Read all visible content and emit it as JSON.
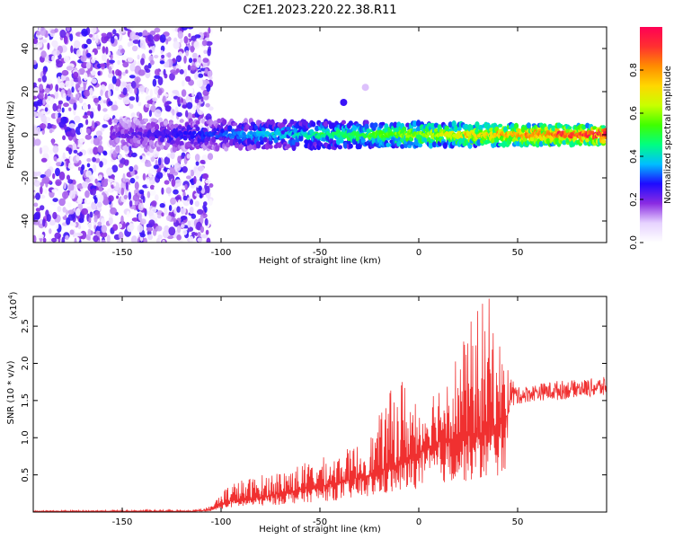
{
  "title": "C2E1.2023.220.22.38.R11",
  "chart_data": [
    {
      "type": "heatmap",
      "xlabel": "Height of straight line (km)",
      "ylabel": "Frequency (Hz)",
      "xlim": [
        -195,
        95
      ],
      "ylim": [
        -50,
        50
      ],
      "xticks": [
        "-150",
        "-100",
        "-50",
        "0",
        "50"
      ],
      "yticks": [
        "-40",
        "-20",
        "0",
        "20",
        "40"
      ],
      "colorbar": {
        "label": "Normalized spectral amplitude",
        "ticks": [
          "0.0",
          "0.2",
          "0.4",
          "0.6",
          "0.8"
        ],
        "colormap": [
          "#ffffff",
          "#e6d2ff",
          "#8a2be2",
          "#1e0bff",
          "#00bfff",
          "#00ff80",
          "#40ff00",
          "#c8ff00",
          "#ffd700",
          "#ff8c00",
          "#ff3030",
          "#ff0055"
        ]
      },
      "features": [
        {
          "region": "noise",
          "x_range": [
            -195,
            -105
          ],
          "freq_range": [
            -50,
            50
          ],
          "amplitude": 0.12
        },
        {
          "region": "signal band",
          "x_range": [
            -155,
            95
          ],
          "freq_center": 0,
          "freq_halfwidth": 6,
          "amplitude_start": 0.2,
          "amplitude_end": 0.95
        },
        {
          "region": "blip",
          "x": -38,
          "freq": 15,
          "amplitude": 0.25
        },
        {
          "region": "blip",
          "x": -27,
          "freq": 22,
          "amplitude": 0.1
        }
      ]
    },
    {
      "type": "line",
      "xlabel": "Height of straight line (km)",
      "ylabel": "SNR (10 * v/v)",
      "multiplier": "(x10",
      "multiplier_exp": "4",
      "multiplier_close": ")",
      "xlim": [
        -195,
        95
      ],
      "ylim": [
        0,
        2.9
      ],
      "xticks": [
        "-150",
        "-100",
        "-50",
        "0",
        "50"
      ],
      "yticks": [
        "0.5",
        "1.0",
        "1.5",
        "2.0",
        "2.5"
      ],
      "color": "#f03030",
      "envelope": {
        "x": [
          -195,
          -115,
          -105,
          -100,
          -95,
          -80,
          -60,
          -40,
          -25,
          -10,
          0,
          10,
          20,
          30,
          36,
          40,
          45,
          50,
          60,
          70,
          80,
          95
        ],
        "base": [
          0.01,
          0.01,
          0.03,
          0.1,
          0.15,
          0.2,
          0.3,
          0.4,
          0.5,
          0.65,
          0.8,
          0.95,
          1.0,
          1.05,
          1.1,
          1.2,
          1.3,
          1.45,
          1.5,
          1.5,
          1.55,
          1.55
        ],
        "peak": [
          0.02,
          0.03,
          0.08,
          0.3,
          0.4,
          0.5,
          0.65,
          0.8,
          1.0,
          1.9,
          1.5,
          1.8,
          2.2,
          2.8,
          2.9,
          2.4,
          2.0,
          1.7,
          1.75,
          1.8,
          1.8,
          1.85
        ]
      }
    }
  ]
}
